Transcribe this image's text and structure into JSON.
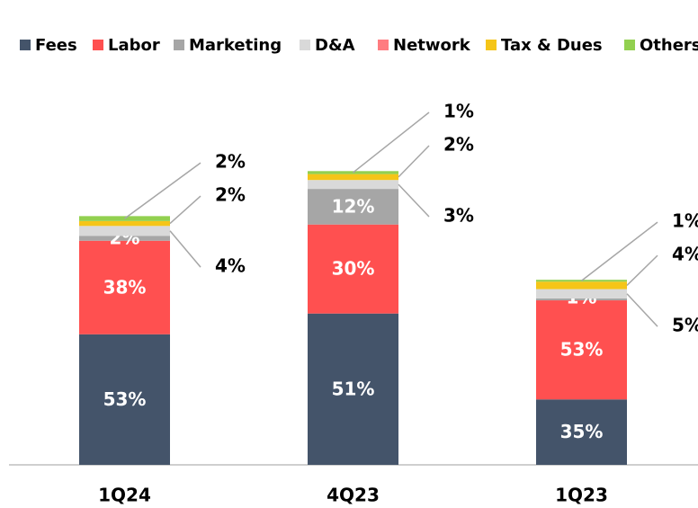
{
  "chart_data": {
    "type": "stacked_bar",
    "categories": [
      "1Q24",
      "4Q23",
      "1Q23"
    ],
    "totals": [
      83,
      100,
      63
    ],
    "ylim": [
      0,
      100
    ],
    "series": [
      {
        "name": "Fees",
        "color": "#44546a",
        "values": [
          53,
          51,
          35
        ],
        "value_labels": [
          "53%",
          "51%",
          "35%"
        ]
      },
      {
        "name": "Labor",
        "color": "#ff5050",
        "values": [
          38,
          30,
          53
        ],
        "value_labels": [
          "38%",
          "30%",
          "53%"
        ]
      },
      {
        "name": "Marketing",
        "color": "#a6a6a6",
        "values": [
          2,
          12,
          1
        ],
        "value_labels": [
          "2%",
          "12%",
          "1%"
        ]
      },
      {
        "name": "D&A",
        "color": "#d9d9d9",
        "values": [
          4,
          3,
          5
        ],
        "value_labels": [
          "4%",
          "3%",
          "5%"
        ]
      },
      {
        "name": "Network",
        "color": "#ff7c80",
        "values": [
          null,
          null,
          null
        ],
        "value_labels": [
          null,
          null,
          null
        ]
      },
      {
        "name": "Tax & Dues",
        "color": "#f5c518",
        "values": [
          2,
          2,
          4
        ],
        "value_labels": [
          "2%",
          "2%",
          "4%"
        ]
      },
      {
        "name": "Others",
        "color": "#92d050",
        "values": [
          2,
          1,
          1
        ],
        "value_labels": [
          "2%",
          "1%",
          "1%"
        ]
      }
    ]
  }
}
